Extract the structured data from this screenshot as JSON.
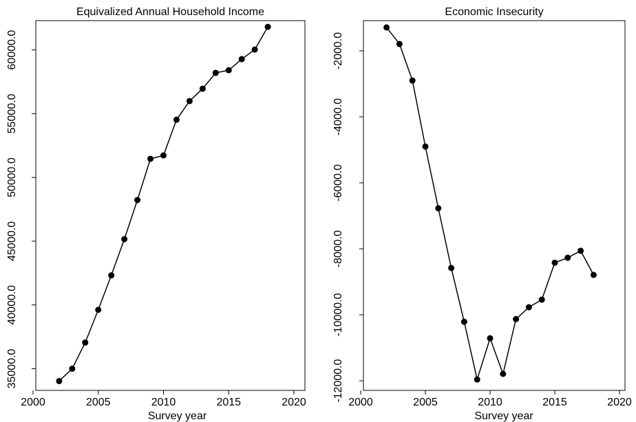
{
  "chart_data": [
    {
      "type": "line",
      "title": "Equivalized Annual Household Income",
      "x_label": "Survey year",
      "x": [
        2002,
        2003,
        2004,
        2005,
        2006,
        2007,
        2008,
        2009,
        2010,
        2011,
        2012,
        2013,
        2014,
        2015,
        2016,
        2017,
        2018
      ],
      "values": [
        34030,
        35000,
        37050,
        39620,
        42320,
        45160,
        48230,
        51460,
        51730,
        54530,
        55990,
        56960,
        58200,
        58410,
        59280,
        60030,
        61810
      ],
      "color": "#000000",
      "xlim": [
        2000,
        2020
      ],
      "xticks": [
        2000,
        2005,
        2010,
        2015,
        2020
      ],
      "ylim": [
        33300,
        62300
      ],
      "yticks": [
        {
          "value": 35000,
          "label": "35000.0"
        },
        {
          "value": 40000,
          "label": "40000.0"
        },
        {
          "value": 45000,
          "label": "45000.0"
        },
        {
          "value": 50000,
          "label": "50000.0"
        },
        {
          "value": 55000,
          "label": "55000.0"
        },
        {
          "value": 60000,
          "label": "60000.0"
        }
      ]
    },
    {
      "type": "line",
      "title": "Economic Insecurity",
      "x_label": "Survey year",
      "x": [
        2002,
        2003,
        2004,
        2005,
        2006,
        2007,
        2008,
        2009,
        2010,
        2011,
        2012,
        2013,
        2014,
        2015,
        2016,
        2017,
        2018
      ],
      "values": [
        -1290,
        -1790,
        -2900,
        -4900,
        -6770,
        -8580,
        -10210,
        -11960,
        -10710,
        -11790,
        -10130,
        -9770,
        -9540,
        -8420,
        -8270,
        -8060,
        -8790
      ],
      "color": "#000000",
      "xlim": [
        2000,
        2020
      ],
      "xticks": [
        2000,
        2005,
        2010,
        2015,
        2020
      ],
      "ylim": [
        -12290,
        -1083
      ],
      "yticks": [
        {
          "value": -2000,
          "label": "-2000.0"
        },
        {
          "value": -4000,
          "label": "-4000.0"
        },
        {
          "value": -6000,
          "label": "-6000.0"
        },
        {
          "value": -8000,
          "label": "-8000.0"
        },
        {
          "value": -10000,
          "label": "-10000.0"
        },
        {
          "value": -12000,
          "label": "-12000.0"
        }
      ]
    }
  ]
}
